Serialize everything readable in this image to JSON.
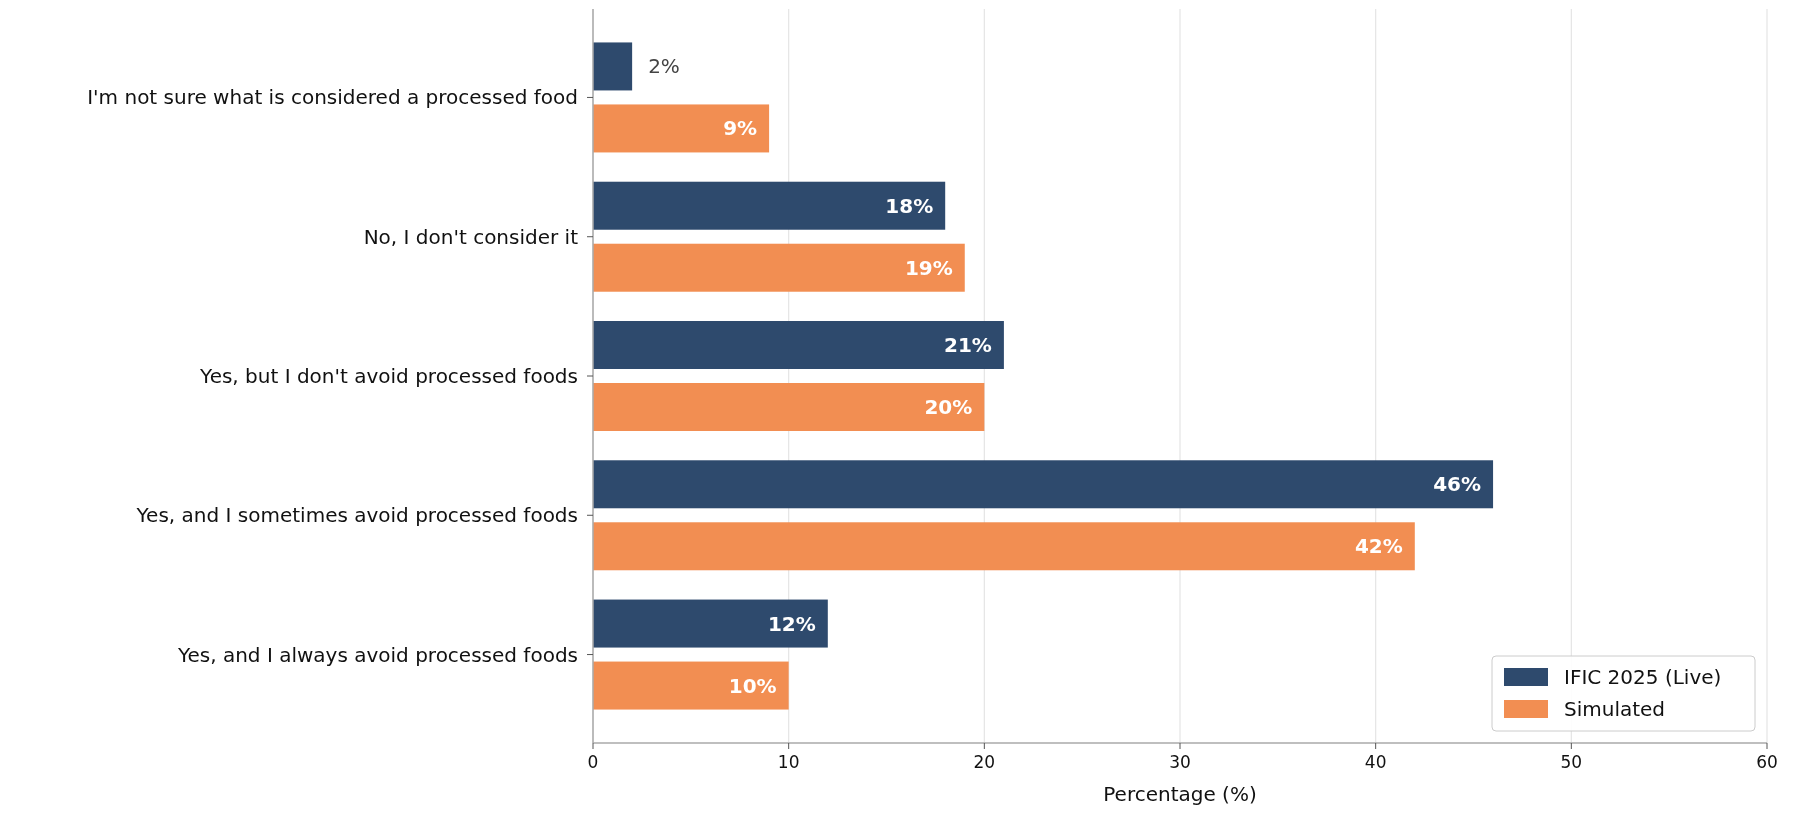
{
  "chart_data": {
    "type": "bar",
    "orientation": "horizontal",
    "xlabel": "Percentage (%)",
    "categories": [
      "I'm not sure what is considered a processed food",
      "No, I don't consider it",
      "Yes, but I don't avoid processed foods",
      "Yes, and I sometimes avoid processed foods",
      "Yes, and I always avoid processed foods"
    ],
    "series": [
      {
        "name": "IFIC 2025 (Live)",
        "color": "#2e4a6d",
        "values": [
          2,
          18,
          21,
          46,
          12
        ],
        "value_labels": [
          "2%",
          "18%",
          "21%",
          "46%",
          "12%"
        ]
      },
      {
        "name": "Simulated",
        "color": "#f28e52",
        "values": [
          9,
          19,
          20,
          42,
          10
        ],
        "value_labels": [
          "9%",
          "19%",
          "20%",
          "42%",
          "10%"
        ]
      }
    ],
    "xlim": [
      0,
      60
    ],
    "xticks": [
      0,
      10,
      20,
      30,
      40,
      50,
      60
    ],
    "grid": "x",
    "legend": "bottom right"
  }
}
